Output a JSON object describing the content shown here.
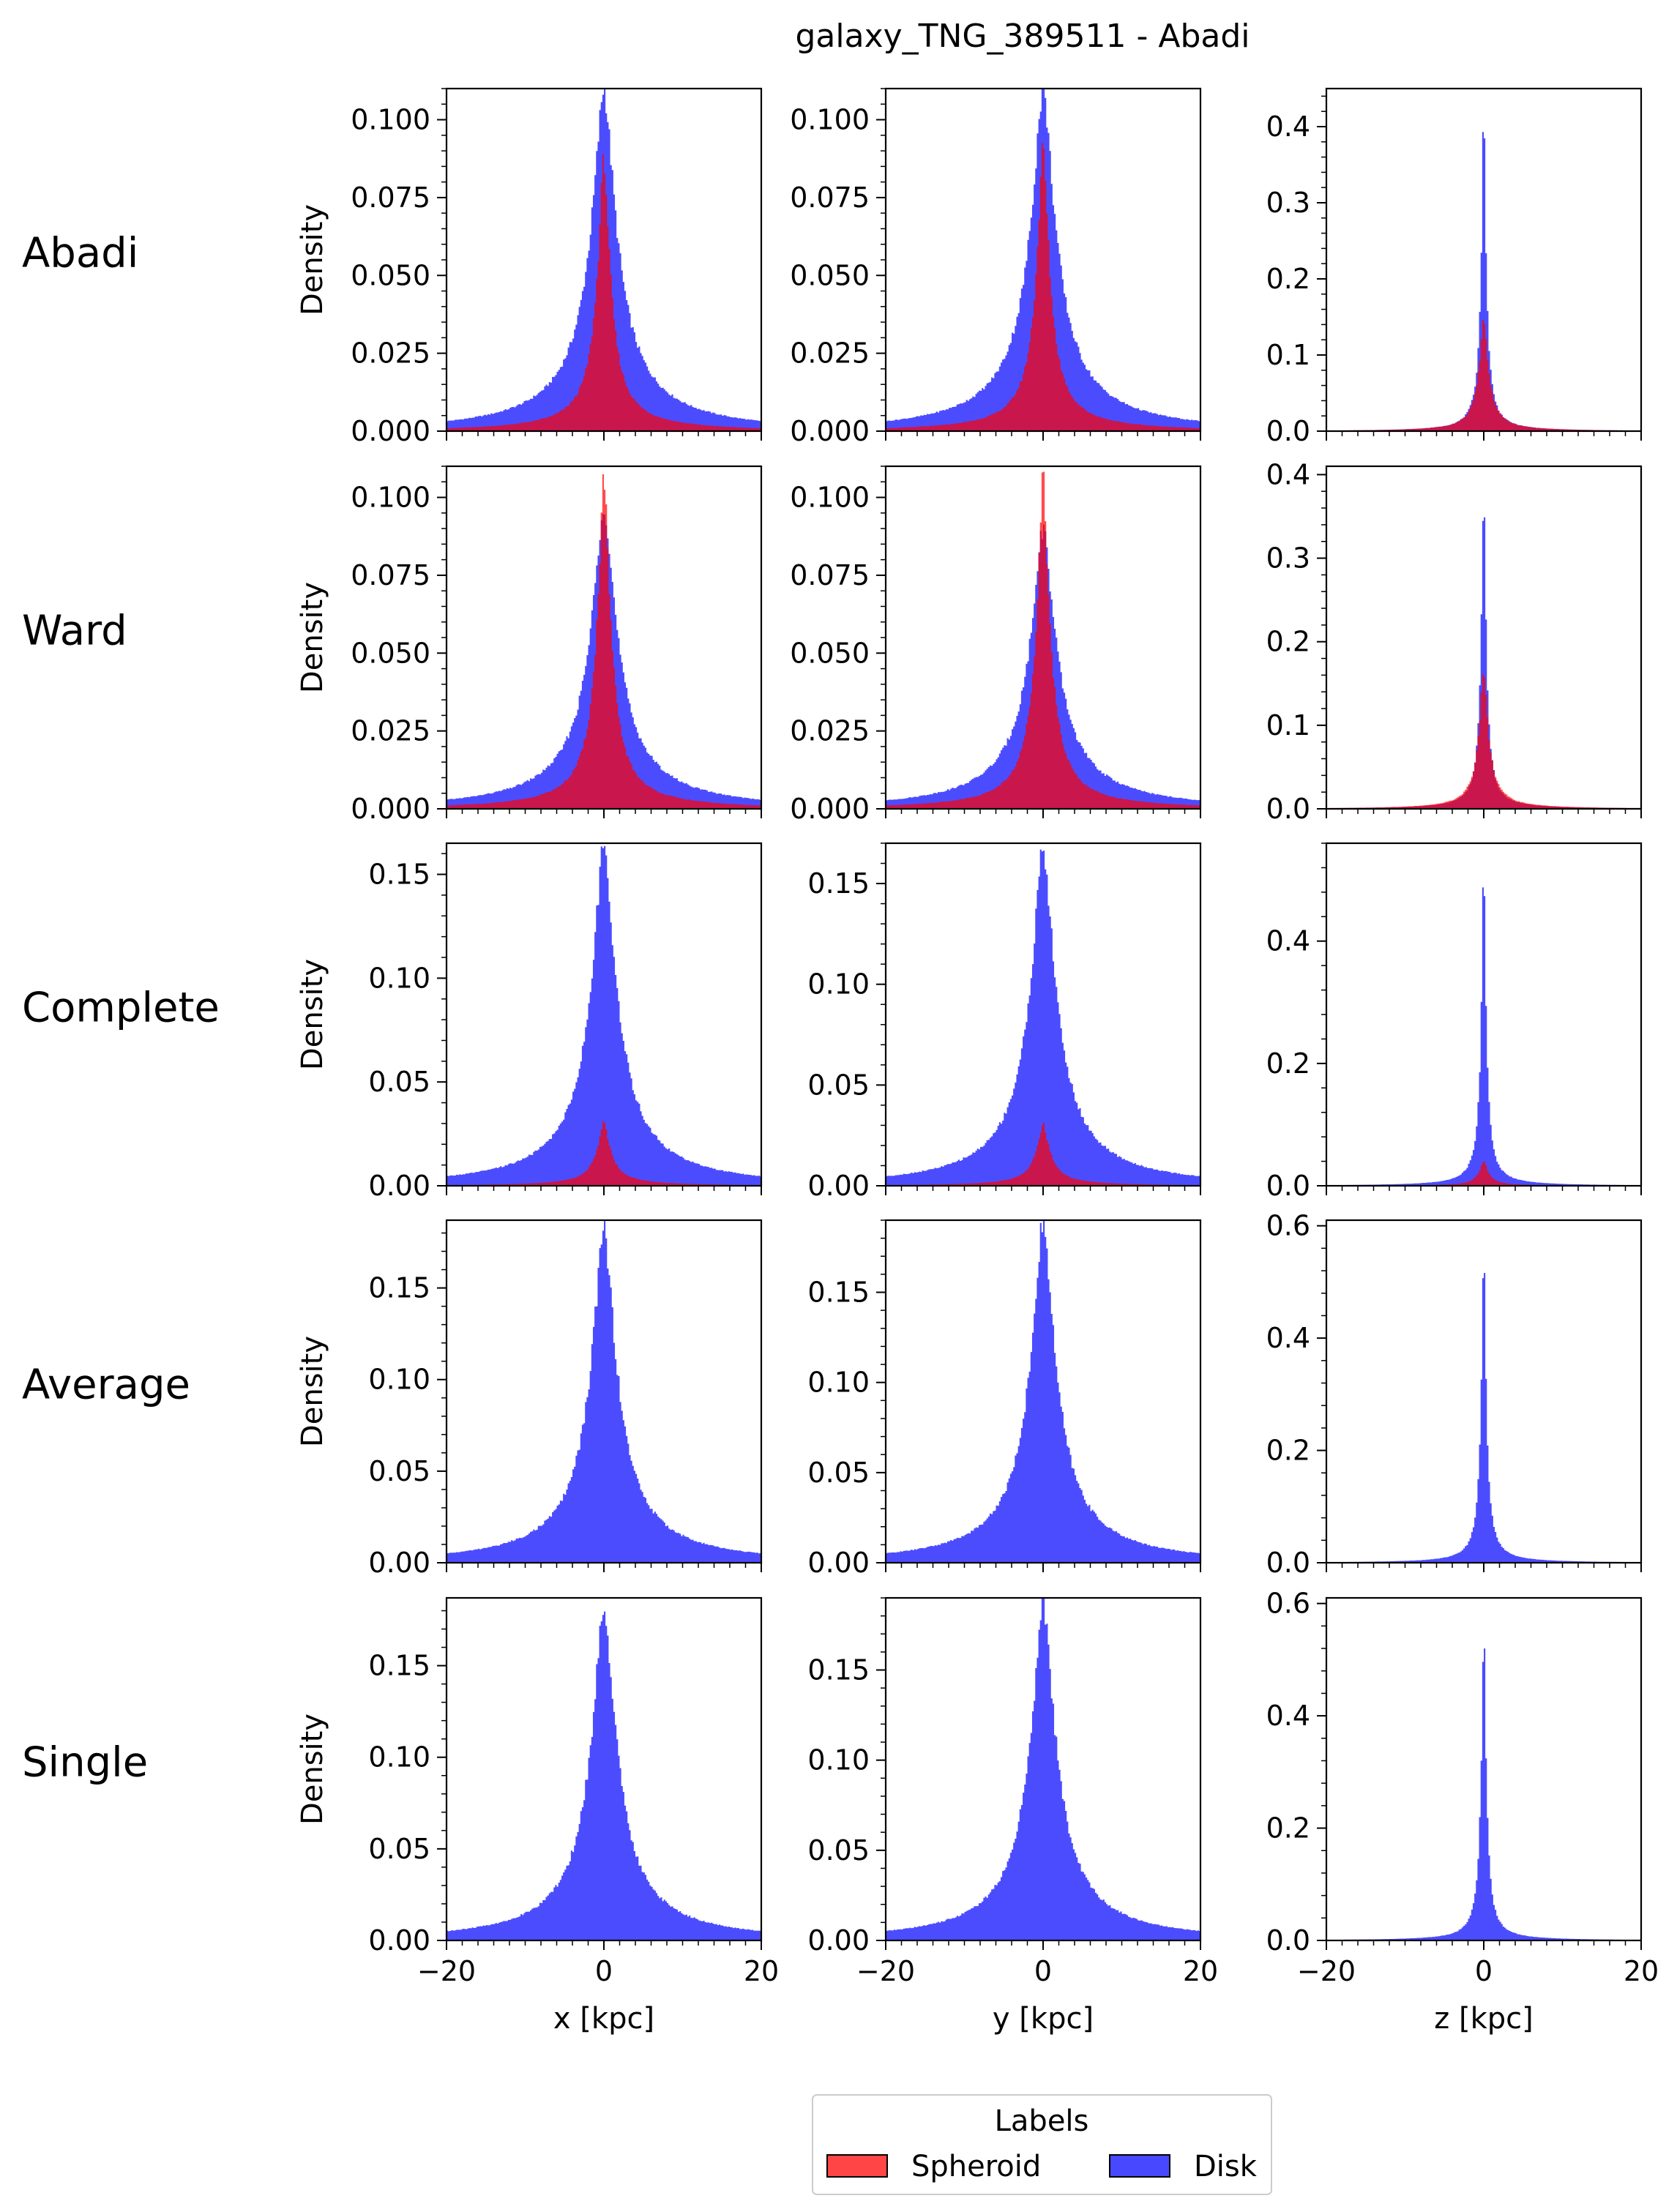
{
  "title": "galaxy_TNG_389511 - Abadi",
  "row_labels": [
    "Abadi",
    "Ward",
    "Complete",
    "Average",
    "Single"
  ],
  "colors": {
    "spheroid": "#ff0000",
    "disk": "#0000ff",
    "overlap": "#b0003a"
  },
  "legend": {
    "title": "Labels",
    "entries": [
      {
        "label": "Spheroid",
        "color": "#ff4545"
      },
      {
        "label": "Disk",
        "color": "#4848ff"
      }
    ]
  },
  "chart_data": {
    "type": "histogram-grid",
    "x_range": [
      -20,
      20
    ],
    "x_ticks": [
      -20,
      0,
      20
    ],
    "x_tick_labels": [
      "−20",
      "0",
      "20"
    ],
    "column_xlabels": [
      "x [kpc]",
      "y [kpc]",
      "z [kpc]"
    ],
    "ylabel": "Density",
    "series_names": [
      "Spheroid",
      "Disk"
    ],
    "panels": [
      {
        "row": "Abadi",
        "col": "x",
        "ylim": [
          0,
          0.11
        ],
        "yticks": [
          0,
          0.025,
          0.05,
          0.075,
          0.1
        ],
        "ytick_labels": [
          "0.000",
          "0.025",
          "0.050",
          "0.075",
          "0.100"
        ],
        "disk_peak": 0.105,
        "disk_width": 2.0,
        "disk_tail": 0.006,
        "sph_peak": 0.086,
        "sph_width": 1.0,
        "sph_tail": 0.002
      },
      {
        "row": "Abadi",
        "col": "y",
        "ylim": [
          0,
          0.11
        ],
        "yticks": [
          0,
          0.025,
          0.05,
          0.075,
          0.1
        ],
        "ytick_labels": [
          "0.000",
          "0.025",
          "0.050",
          "0.075",
          "0.100"
        ],
        "disk_peak": 0.105,
        "disk_width": 2.0,
        "disk_tail": 0.006,
        "sph_peak": 0.09,
        "sph_width": 1.0,
        "sph_tail": 0.002
      },
      {
        "row": "Abadi",
        "col": "z",
        "ylim": [
          0,
          0.45
        ],
        "yticks": [
          0,
          0.1,
          0.2,
          0.3,
          0.4
        ],
        "ytick_labels": [
          "0.0",
          "0.1",
          "0.2",
          "0.3",
          "0.4"
        ],
        "disk_peak": 0.43,
        "disk_width": 0.35,
        "disk_tail": 0.0015,
        "sph_peak": 0.15,
        "sph_width": 0.7,
        "sph_tail": 0.001
      },
      {
        "row": "Ward",
        "col": "x",
        "ylim": [
          0,
          0.11
        ],
        "yticks": [
          0,
          0.025,
          0.05,
          0.075,
          0.1
        ],
        "ytick_labels": [
          "0.000",
          "0.025",
          "0.050",
          "0.075",
          "0.100"
        ],
        "disk_peak": 0.093,
        "disk_width": 2.0,
        "disk_tail": 0.006,
        "sph_peak": 0.106,
        "sph_width": 1.0,
        "sph_tail": 0.002
      },
      {
        "row": "Ward",
        "col": "y",
        "ylim": [
          0,
          0.11
        ],
        "yticks": [
          0,
          0.025,
          0.05,
          0.075,
          0.1
        ],
        "ytick_labels": [
          "0.000",
          "0.025",
          "0.050",
          "0.075",
          "0.100"
        ],
        "disk_peak": 0.085,
        "disk_width": 2.0,
        "disk_tail": 0.006,
        "sph_peak": 0.106,
        "sph_width": 1.0,
        "sph_tail": 0.002
      },
      {
        "row": "Ward",
        "col": "z",
        "ylim": [
          0,
          0.41
        ],
        "yticks": [
          0,
          0.1,
          0.2,
          0.3,
          0.4
        ],
        "ytick_labels": [
          "0.0",
          "0.1",
          "0.2",
          "0.3",
          "0.4"
        ],
        "disk_peak": 0.4,
        "disk_width": 0.35,
        "disk_tail": 0.0015,
        "sph_peak": 0.17,
        "sph_width": 0.7,
        "sph_tail": 0.001
      },
      {
        "row": "Complete",
        "col": "x",
        "ylim": [
          0,
          0.165
        ],
        "yticks": [
          0,
          0.05,
          0.1,
          0.15
        ],
        "ytick_labels": [
          "0.00",
          "0.05",
          "0.10",
          "0.15"
        ],
        "disk_peak": 0.158,
        "disk_width": 2.0,
        "disk_tail": 0.007,
        "sph_peak": 0.03,
        "sph_width": 1.0,
        "sph_tail": 0.001
      },
      {
        "row": "Complete",
        "col": "y",
        "ylim": [
          0,
          0.17
        ],
        "yticks": [
          0,
          0.05,
          0.1,
          0.15
        ],
        "ytick_labels": [
          "0.00",
          "0.05",
          "0.10",
          "0.15"
        ],
        "disk_peak": 0.162,
        "disk_width": 2.0,
        "disk_tail": 0.007,
        "sph_peak": 0.03,
        "sph_width": 1.0,
        "sph_tail": 0.001
      },
      {
        "row": "Complete",
        "col": "z",
        "ylim": [
          0,
          0.56
        ],
        "yticks": [
          0,
          0.2,
          0.4
        ],
        "ytick_labels": [
          "0.0",
          "0.2",
          "0.4"
        ],
        "disk_peak": 0.53,
        "disk_width": 0.35,
        "disk_tail": 0.002,
        "sph_peak": 0.04,
        "sph_width": 0.7,
        "sph_tail": 0.0005
      },
      {
        "row": "Average",
        "col": "x",
        "ylim": [
          0,
          0.187
        ],
        "yticks": [
          0,
          0.05,
          0.1,
          0.15
        ],
        "ytick_labels": [
          "0.00",
          "0.05",
          "0.10",
          "0.15"
        ],
        "disk_peak": 0.178,
        "disk_width": 2.0,
        "disk_tail": 0.007
      },
      {
        "row": "Average",
        "col": "y",
        "ylim": [
          0,
          0.19
        ],
        "yticks": [
          0,
          0.05,
          0.1,
          0.15
        ],
        "ytick_labels": [
          "0.00",
          "0.05",
          "0.10",
          "0.15"
        ],
        "disk_peak": 0.183,
        "disk_width": 2.0,
        "disk_tail": 0.007
      },
      {
        "row": "Average",
        "col": "z",
        "ylim": [
          0,
          0.61
        ],
        "yticks": [
          0,
          0.2,
          0.4,
          0.6
        ],
        "ytick_labels": [
          "0.0",
          "0.2",
          "0.4",
          "0.6"
        ],
        "disk_peak": 0.58,
        "disk_width": 0.35,
        "disk_tail": 0.002
      },
      {
        "row": "Single",
        "col": "x",
        "ylim": [
          0,
          0.187
        ],
        "yticks": [
          0,
          0.05,
          0.1,
          0.15
        ],
        "ytick_labels": [
          "0.00",
          "0.05",
          "0.10",
          "0.15"
        ],
        "disk_peak": 0.178,
        "disk_width": 2.0,
        "disk_tail": 0.007
      },
      {
        "row": "Single",
        "col": "y",
        "ylim": [
          0,
          0.19
        ],
        "yticks": [
          0,
          0.05,
          0.1,
          0.15
        ],
        "ytick_labels": [
          "0.00",
          "0.05",
          "0.10",
          "0.15"
        ],
        "disk_peak": 0.183,
        "disk_width": 2.0,
        "disk_tail": 0.007
      },
      {
        "row": "Single",
        "col": "z",
        "ylim": [
          0,
          0.61
        ],
        "yticks": [
          0,
          0.2,
          0.4,
          0.6
        ],
        "ytick_labels": [
          "0.0",
          "0.2",
          "0.4",
          "0.6"
        ],
        "disk_peak": 0.58,
        "disk_width": 0.35,
        "disk_tail": 0.002
      }
    ]
  }
}
